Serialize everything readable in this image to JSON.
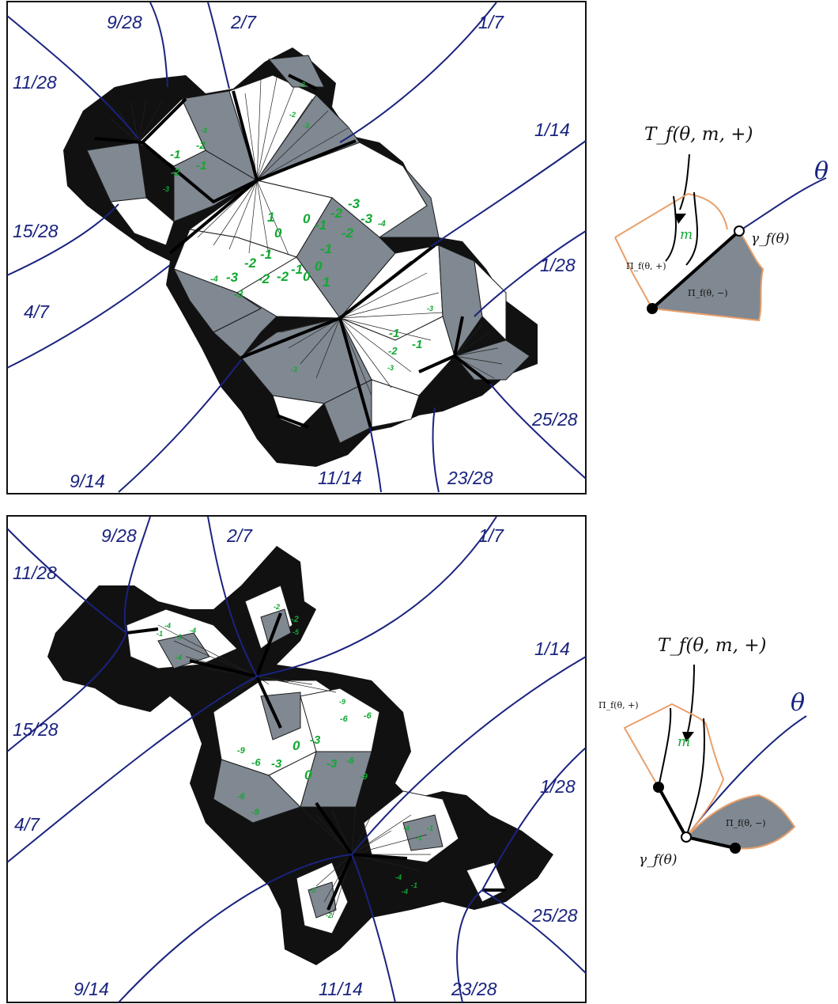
{
  "panel_top": {
    "ray_labels": [
      "9/28",
      "2/7",
      "1/7",
      "11/28",
      "1/14",
      "15/28",
      "1/28",
      "4/7",
      "25/28",
      "9/14",
      "11/14",
      "23/28"
    ],
    "green_numbers": [
      "-1",
      "-2",
      "-1",
      "-2",
      "-3",
      "-3",
      "-2",
      "-3",
      "-3",
      "1",
      "0",
      "0",
      "-1",
      "-2",
      "-3",
      "-4",
      "-2",
      "-3",
      "-1",
      "-2",
      "-1",
      "-2",
      "-3",
      "-4",
      "-3",
      "-2",
      "-1",
      "0",
      "0",
      "1",
      "-1",
      "-2",
      "-1",
      "-3",
      "-3",
      "-3"
    ]
  },
  "panel_bottom": {
    "ray_labels": [
      "9/28",
      "2/7",
      "1/7",
      "11/28",
      "1/14",
      "15/28",
      "1/28",
      "4/7",
      "25/28",
      "9/14",
      "11/14",
      "23/28"
    ],
    "green_numbers": [
      "-1",
      "-4",
      "-1",
      "-4",
      "-4",
      "-2",
      "-2",
      "-5",
      "-9",
      "-6",
      "-6",
      "-9",
      "-6",
      "-3",
      "0",
      "-3",
      "0",
      "-3",
      "-6",
      "-9",
      "-6",
      "-9",
      "-4",
      "-1",
      "-1",
      "-4",
      "-1",
      "-4",
      "-2",
      "-2"
    ]
  },
  "inset_top": {
    "title": "T_f(θ, m, +)",
    "theta": "θ",
    "m": "m",
    "gamma": "γ_f(θ)",
    "pi_plus": "Π_f(θ, +)",
    "pi_minus": "Π_f(θ, −)"
  },
  "inset_bottom": {
    "title": "T_f(θ, m, +)",
    "theta": "θ",
    "m": "m",
    "gamma": "γ_f(θ)",
    "pi_plus": "Π_f(θ, +)",
    "pi_minus": "Π_f(θ, −)"
  }
}
